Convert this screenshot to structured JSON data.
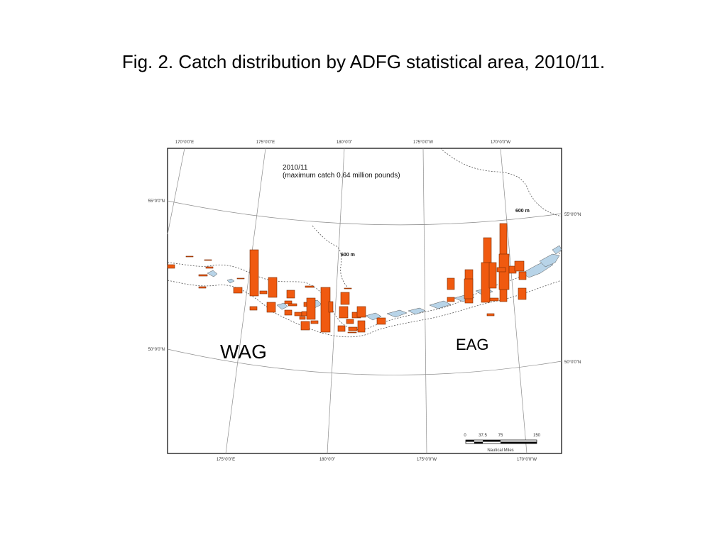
{
  "slide": {
    "title": "Fig. 2. Catch distribution by ADFG statistical area, 2010/11."
  },
  "map": {
    "season": "2010/11",
    "subtitle": "(maximum catch 0.64 million pounds)",
    "top_ticks": [
      "170°0'0\"E",
      "175°0'0\"E",
      "180°0'0\"",
      "175°0'0\"W",
      "170°0'0\"W"
    ],
    "bottom_ticks": [
      "175°0'0\"E",
      "180°0'0\"",
      "175°0'0\"W",
      "170°0'0\"W"
    ],
    "left_ticks": [
      "55°0'0\"N",
      "50°0'0\"N"
    ],
    "right_ticks": [
      "55°0'0\"N",
      "50°0'0\"N"
    ],
    "depth_labels": [
      "600 m",
      "600 m"
    ],
    "region_labels": {
      "west": "WAG",
      "east": "EAG"
    },
    "scale_bar": {
      "ticks": [
        "0",
        "37.5",
        "75",
        "150"
      ],
      "unit": "Nautical Miles"
    },
    "colors": {
      "catch_fill": "#f05a10",
      "catch_stroke": "#7a2a00",
      "land": "#b8d4e8",
      "frame": "#000000",
      "graticule": "#888888"
    }
  }
}
